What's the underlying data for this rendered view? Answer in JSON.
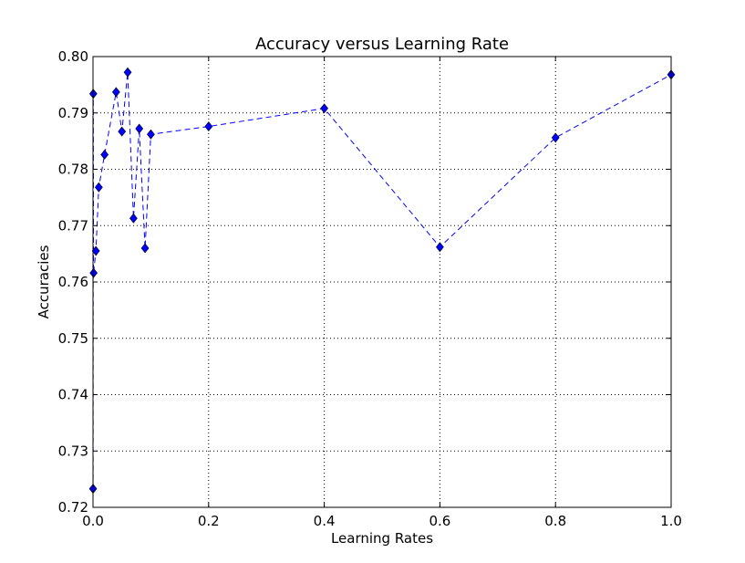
{
  "chart_data": {
    "type": "line",
    "title": "Accuracy versus Learning Rate",
    "xlabel": "Learning Rates",
    "ylabel": "Accuracies",
    "xlim": [
      0.0,
      1.0
    ],
    "ylim": [
      0.72,
      0.8
    ],
    "xticks": [
      "0.0",
      "0.2",
      "0.4",
      "0.6",
      "0.8",
      "1.0"
    ],
    "yticks": [
      "0.72",
      "0.73",
      "0.74",
      "0.75",
      "0.76",
      "0.77",
      "0.78",
      "0.79",
      "0.80"
    ],
    "grid": true,
    "series": [
      {
        "color": "#0000ff",
        "linestyle": "dashed",
        "marker": "diamond",
        "x": [
          0.0001,
          0.0005,
          0.001,
          0.005,
          0.01,
          0.02,
          0.04,
          0.05,
          0.06,
          0.07,
          0.08,
          0.09,
          0.1,
          0.2,
          0.4,
          0.6,
          0.8,
          1.0
        ],
        "y": [
          0.7233,
          0.7934,
          0.7616,
          0.7655,
          0.7768,
          0.7826,
          0.7937,
          0.7867,
          0.7972,
          0.7713,
          0.7872,
          0.766,
          0.7862,
          0.7876,
          0.7908,
          0.7662,
          0.7856,
          0.7968
        ]
      }
    ]
  }
}
